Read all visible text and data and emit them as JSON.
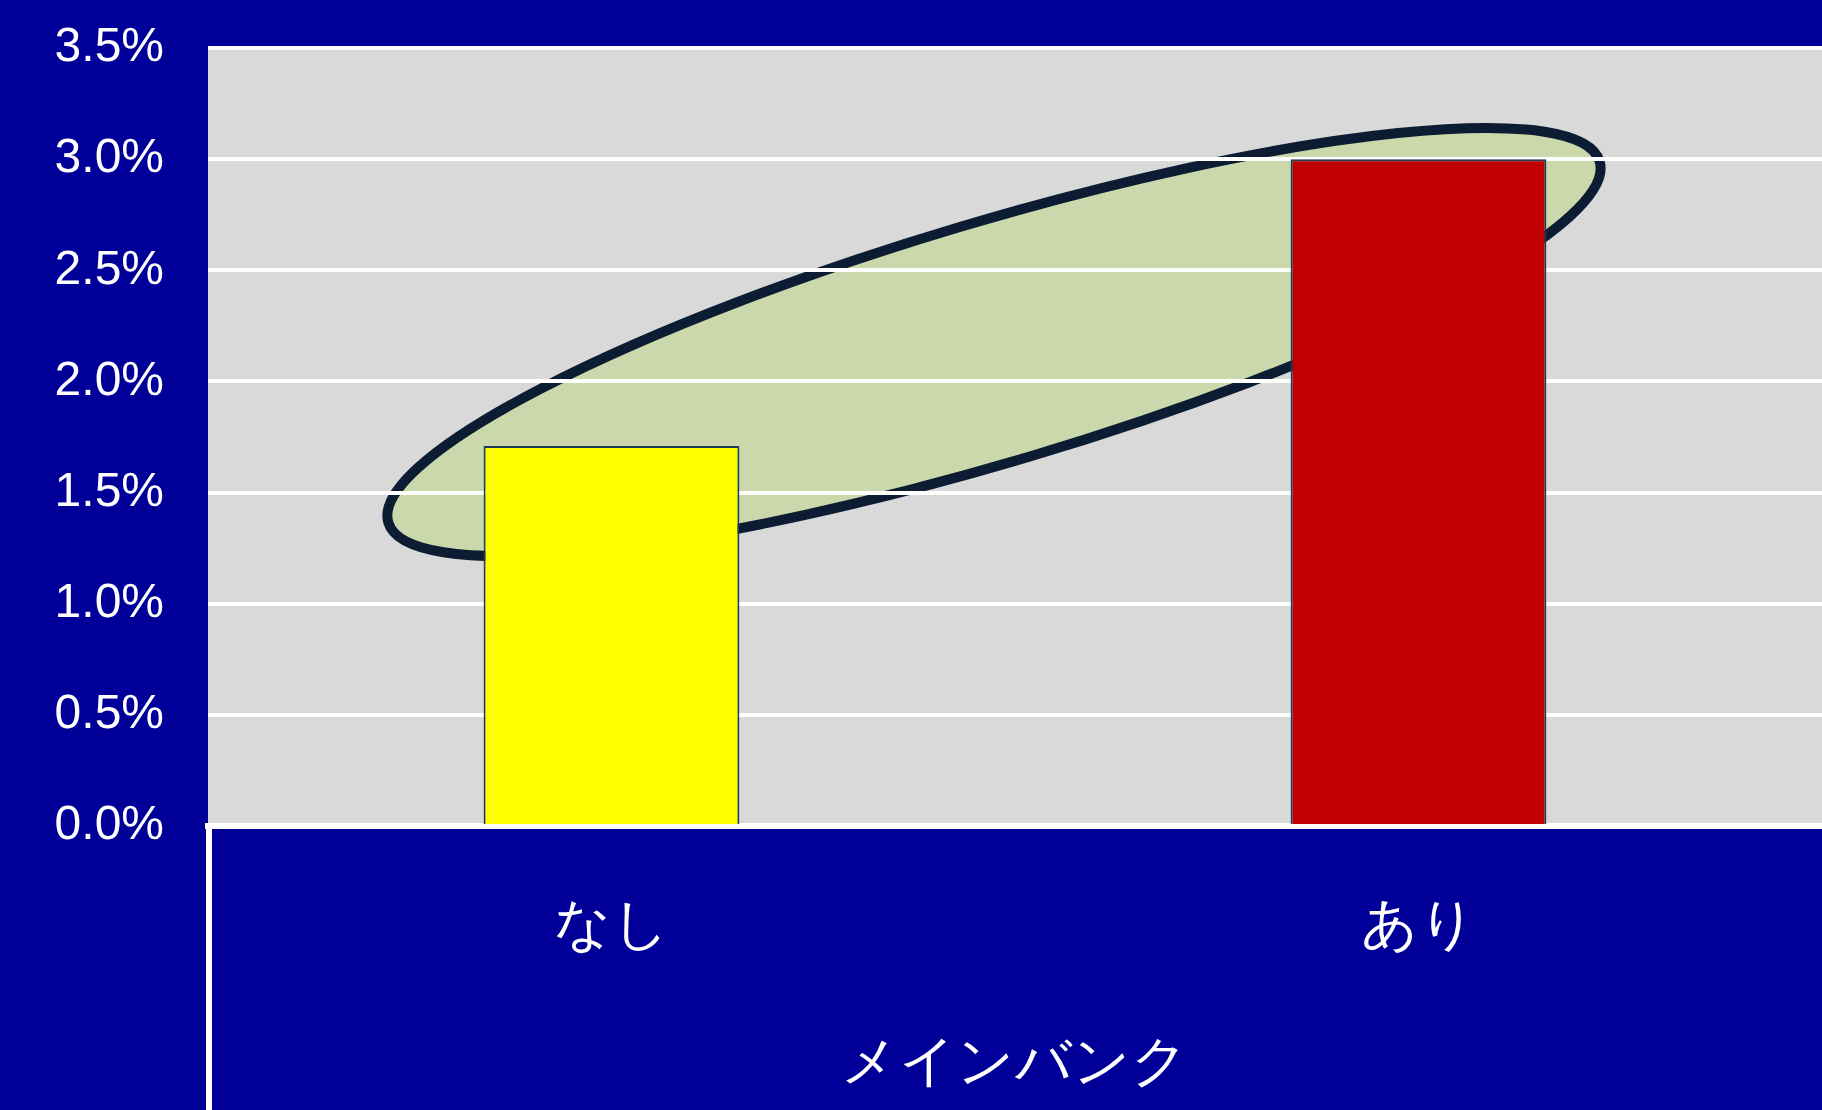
{
  "chart_data": {
    "type": "bar",
    "categories": [
      "なし",
      "あり"
    ],
    "values": [
      1.71,
      3.0
    ],
    "colors": [
      "#ffff00",
      "#c00000"
    ],
    "xlabel": "メインバンク",
    "ylim": [
      0,
      3.5
    ],
    "yticks": [
      {
        "value": 0,
        "label": "0.0%"
      },
      {
        "value": 0.5,
        "label": "0.5%"
      },
      {
        "value": 1,
        "label": "1.0%"
      },
      {
        "value": 1.5,
        "label": "1.5%"
      },
      {
        "value": 2,
        "label": "2.0%"
      },
      {
        "value": 2.5,
        "label": "2.5%"
      },
      {
        "value": 3,
        "label": "3.0%"
      },
      {
        "value": 3.5,
        "label": "3.5%"
      }
    ],
    "grid": "y"
  }
}
